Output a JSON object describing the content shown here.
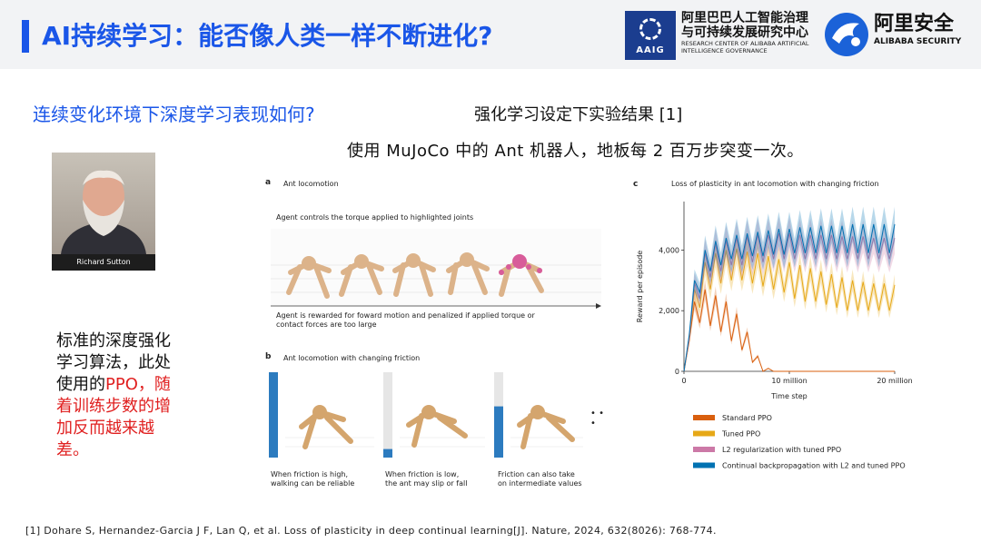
{
  "header": {
    "title": "AI持续学习：能否像人类一样不断进化?",
    "aaig_logo_label": "AAIG",
    "aaig_name_cn": "阿里巴巴人工智能治理与可持续发展研究中心",
    "aaig_name_en": "RESEARCH CENTER OF ALIBABA ARTIFICIAL INTELLIGENCE GOVERNANCE",
    "security_name_cn": "阿里安全",
    "security_name_en": "ALIBABA SECURITY",
    "accent_color": "#1a56e8"
  },
  "left": {
    "question": "连续变化环境下深度学习表现如何?",
    "photo_caption": "Richard Sutton",
    "desc_black": "标准的深度强化学习算法，此处使用的",
    "desc_red": "PPO，随着训练步数的增加反而越来越差。"
  },
  "right": {
    "result_title": "强化学习设定下实验结果 [1]",
    "result_sub": "使用 MuJoCo 中的 Ant 机器人，地板每 2 百万步突变一次。"
  },
  "figure_a": {
    "panel": "a",
    "title": "Ant locomotion",
    "top_text": "Agent controls the torque applied to highlighted joints",
    "bottom_text_1": "Agent is rewarded for foward motion and penalized if applied torque or",
    "bottom_text_2": "contact forces are too large"
  },
  "figure_b": {
    "panel": "b",
    "title": "Ant locomotion with changing friction",
    "ellipsis": "• • •",
    "cap1_l1": "When friction is high,",
    "cap1_l2": "walking can be reliable",
    "cap2_l1": "When friction is low,",
    "cap2_l2": "the ant may slip or fall",
    "cap3_l1": "Friction can also take",
    "cap3_l2": "on intermediate values",
    "friction_levels": [
      1.0,
      0.1,
      0.6
    ]
  },
  "chart_data": {
    "type": "line",
    "panel": "c",
    "title": "Loss of plasticity in ant locomotion with changing friction",
    "xlabel": "Time step",
    "ylabel": "Reward per episode",
    "xlim": [
      0,
      20
    ],
    "ylim": [
      0,
      5600
    ],
    "xticks": [
      {
        "v": 0,
        "label": "0"
      },
      {
        "v": 10,
        "label": "10 million"
      },
      {
        "v": 20,
        "label": "20 million"
      }
    ],
    "yticks": [
      {
        "v": 0,
        "label": "0"
      },
      {
        "v": 2000,
        "label": "2,000"
      },
      {
        "v": 4000,
        "label": "4,000"
      }
    ],
    "x": [
      0,
      0.5,
      1,
      1.5,
      2,
      2.5,
      3,
      3.5,
      4,
      4.5,
      5,
      5.5,
      6,
      6.5,
      7,
      7.5,
      8,
      8.5,
      9,
      9.5,
      10,
      10.5,
      11,
      11.5,
      12,
      12.5,
      13,
      13.5,
      14,
      14.5,
      15,
      15.5,
      16,
      16.5,
      17,
      17.5,
      18,
      18.5,
      19,
      19.5,
      20
    ],
    "series": [
      {
        "name": "Standard PPO",
        "color": "#d95f0e",
        "values": [
          0,
          1000,
          2300,
          1600,
          2700,
          1500,
          2500,
          1300,
          2300,
          1000,
          1900,
          700,
          1300,
          300,
          500,
          0,
          100,
          0,
          0,
          0,
          0,
          0,
          0,
          0,
          0,
          0,
          0,
          0,
          0,
          0,
          0,
          0,
          0,
          0,
          0,
          0,
          0,
          0,
          0,
          0,
          0
        ]
      },
      {
        "name": "Tuned PPO",
        "color": "#e6a817",
        "values": [
          0,
          1100,
          2700,
          2100,
          3600,
          2700,
          3900,
          2900,
          4000,
          3000,
          4050,
          3000,
          3950,
          2900,
          3900,
          2800,
          3800,
          2700,
          3700,
          2600,
          3600,
          2400,
          3500,
          2300,
          3400,
          2300,
          3300,
          2200,
          3200,
          2100,
          3100,
          2000,
          3000,
          2000,
          2950,
          2000,
          2900,
          2000,
          2900,
          2000,
          2850
        ]
      },
      {
        "name": "L2 regularization with tuned PPO",
        "color": "#cc79a7",
        "values": [
          0,
          1100,
          2900,
          2400,
          3900,
          3100,
          4200,
          3300,
          4300,
          3500,
          4400,
          3500,
          4450,
          3600,
          4500,
          3600,
          4500,
          3700,
          4550,
          3700,
          4550,
          3700,
          4500,
          3700,
          4500,
          3700,
          4500,
          3700,
          4500,
          3700,
          4450,
          3700,
          4450,
          3700,
          4450,
          3700,
          4400,
          3700,
          4400,
          3700,
          4400
        ]
      },
      {
        "name": "Continual backpropagation with L2 and tuned PPO",
        "color": "#0072b2",
        "values": [
          0,
          1200,
          3000,
          2600,
          4000,
          3300,
          4300,
          3500,
          4400,
          3700,
          4500,
          3700,
          4550,
          3800,
          4600,
          3800,
          4650,
          3850,
          4700,
          3850,
          4700,
          3900,
          4750,
          3900,
          4750,
          3900,
          4800,
          3900,
          4800,
          3900,
          4800,
          3900,
          4850,
          3900,
          4850,
          3900,
          4850,
          3900,
          4850,
          3900,
          4850
        ]
      }
    ],
    "legend_position": "bottom"
  },
  "citation": "[1] Dohare S, Hernandez-Garcia J F, Lan Q, et al. Loss of plasticity in deep continual learning[J]. Nature, 2024, 632(8026): 768-774."
}
